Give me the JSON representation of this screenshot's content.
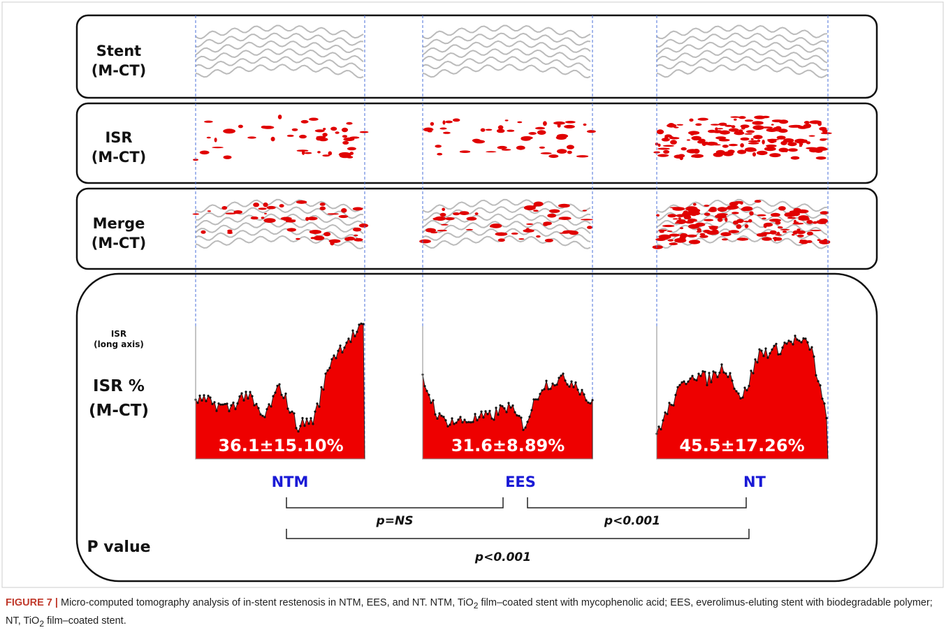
{
  "figure": {
    "rows": [
      {
        "label": "Stent",
        "sub": "(M-CT)"
      },
      {
        "label": "ISR",
        "sub": "(M-CT)"
      },
      {
        "label": "Merge",
        "sub": "(M-CT)"
      }
    ],
    "isr_panel": {
      "axis_label": "ISR",
      "axis_sub": "(long axis)",
      "label": "ISR %",
      "sub": "(M-CT)",
      "values": [
        "36.1±15.10%",
        "31.6±8.89%",
        "45.5±17.26%"
      ]
    },
    "groups": [
      "NTM",
      "EES",
      "NT"
    ],
    "p_label": "P value",
    "comparisons": [
      "p=NS",
      "p<0.001",
      "p<0.001"
    ]
  },
  "caption": {
    "label": "FIGURE 7 |",
    "parts": [
      "Micro-computed tomography analysis of in-stent restenosis in NTM, EES, and NT. NTM, TiO",
      "2",
      " film–coated stent with mycophenolic acid; EES, everolimus-eluting stent with biodegradable polymer; NT, TiO",
      "2",
      " film–coated stent."
    ]
  }
}
